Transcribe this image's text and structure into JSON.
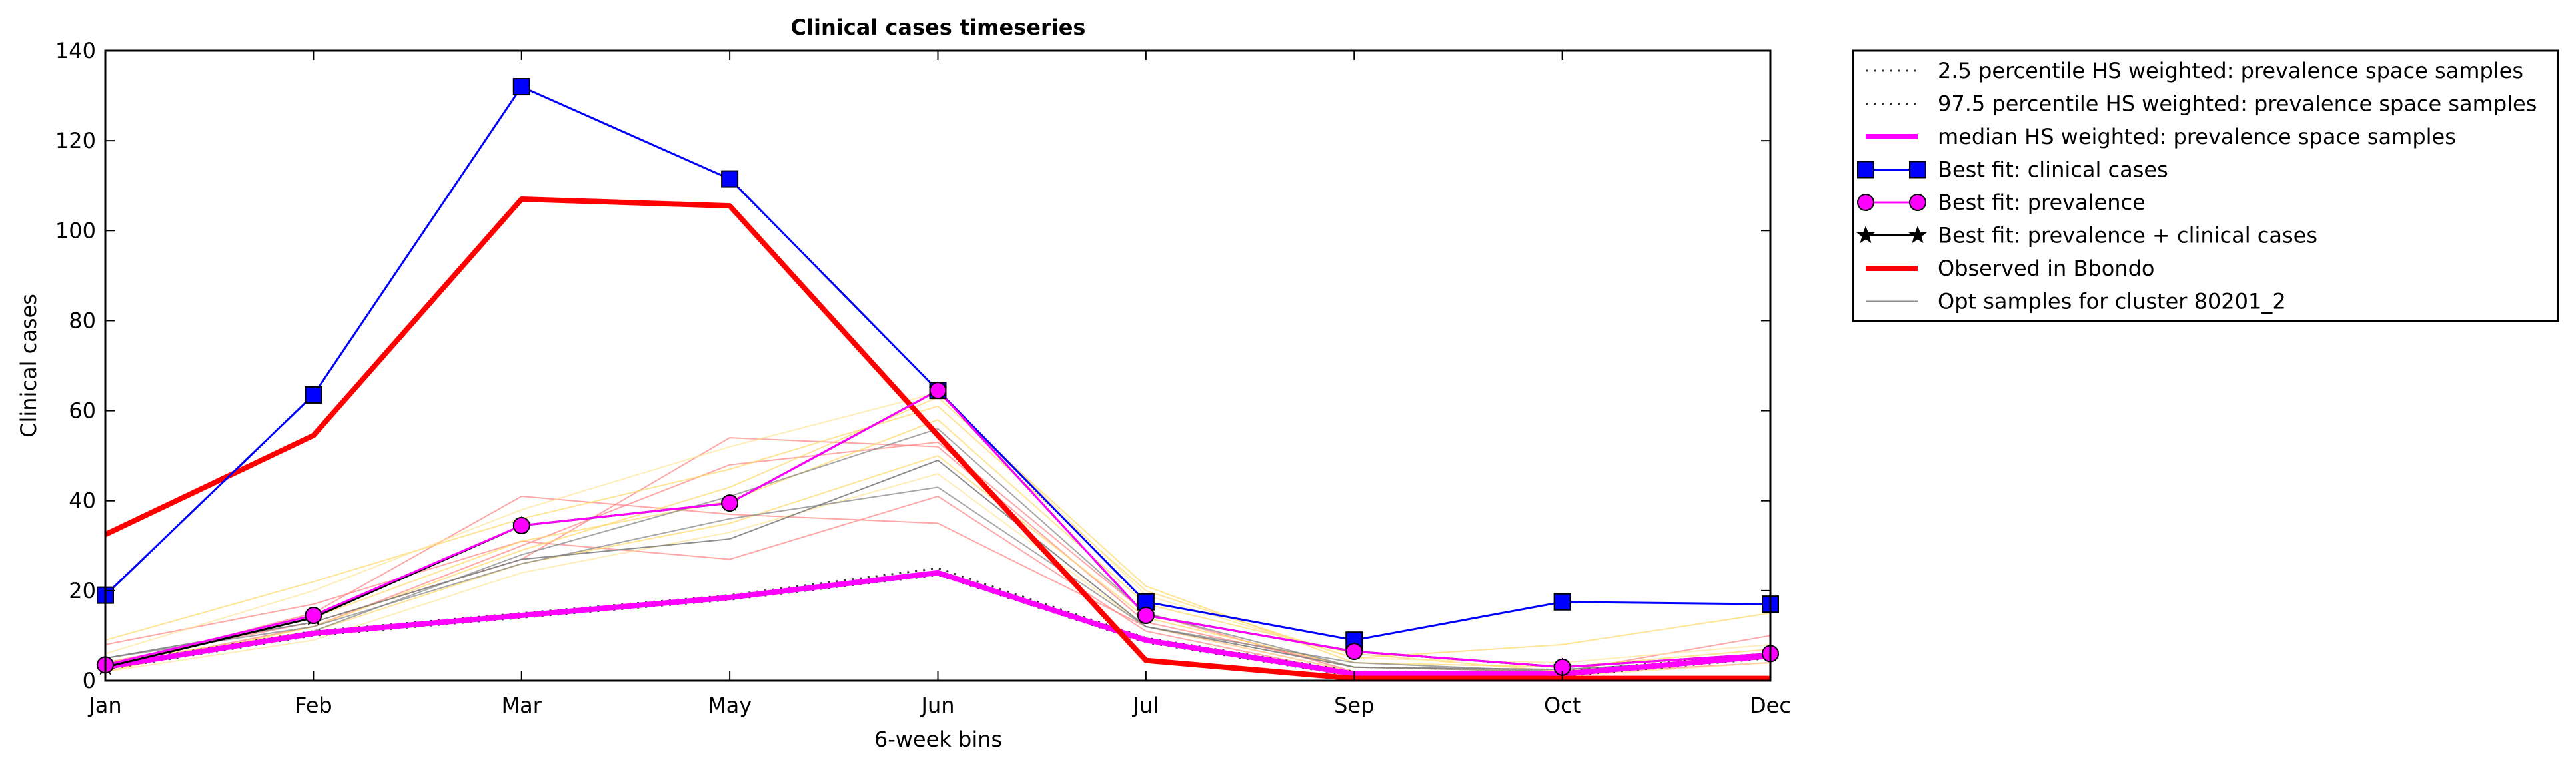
{
  "chart_data": {
    "type": "line",
    "title": "Clinical cases timeseries",
    "xlabel": "6-week bins",
    "ylabel": "Clinical cases",
    "ylim": [
      0,
      140
    ],
    "yticks": [
      0,
      20,
      40,
      60,
      80,
      100,
      120,
      140
    ],
    "categories": [
      "Jan",
      "Feb",
      "Mar",
      "May",
      "Jun",
      "Jul",
      "Sep",
      "Oct",
      "Dec"
    ],
    "grid": false,
    "legend_position": "outside-right",
    "series": [
      {
        "name": "2.5 percentile HS weighted: prevalence space samples",
        "color": "#000000",
        "style": "dotted",
        "values": [
          2.5,
          10,
          14,
          18,
          23.5,
          8.5,
          1,
          1,
          5
        ]
      },
      {
        "name": "97.5 percentile HS weighted: prevalence space samples",
        "color": "#000000",
        "style": "dotted",
        "values": [
          3.5,
          11,
          15,
          19,
          25,
          9.5,
          2,
          2,
          6
        ]
      },
      {
        "name": "median HS weighted: prevalence space samples",
        "color": "#ff00ff",
        "style": "solid-thick",
        "values": [
          3,
          10.5,
          14.5,
          18.5,
          24,
          9,
          1.5,
          1.5,
          5.5
        ]
      },
      {
        "name": "Best fit: clinical cases",
        "color": "#0000ff",
        "style": "line-square",
        "values": [
          19,
          63.5,
          132,
          111.5,
          64.5,
          17.5,
          9,
          17.5,
          17
        ]
      },
      {
        "name": "Best fit: prevalence",
        "color": "#ff00ff",
        "style": "line-circle",
        "values": [
          3.5,
          14.5,
          34.5,
          39.5,
          64.5,
          14.5,
          6.5,
          3,
          6
        ]
      },
      {
        "name": "Best fit: prevalence + clinical cases",
        "color": "#000000",
        "style": "line-star",
        "values": [
          3,
          14,
          34.5,
          39.5,
          64.5,
          14.5,
          6.5,
          3,
          6
        ]
      },
      {
        "name": "Observed in Bbondo",
        "color": "#ff0000",
        "style": "solid-thick",
        "values": [
          32.5,
          54.5,
          107,
          105.5,
          54.5,
          4.5,
          0.5,
          0.5,
          0.5
        ]
      },
      {
        "name": "Opt samples for cluster 80201_2",
        "color": "#808080",
        "style": "thin",
        "values": [
          5,
          13,
          27,
          31.5,
          49,
          12,
          3,
          2.5,
          5
        ]
      }
    ],
    "background_samples": [
      {
        "color": "#ff8080",
        "values": [
          3,
          15,
          41,
          37,
          35,
          12,
          2,
          1.5,
          4
        ]
      },
      {
        "color": "#ff8080",
        "values": [
          4,
          13,
          27,
          54,
          52,
          13,
          3,
          2,
          10
        ]
      },
      {
        "color": "#ff8080",
        "values": [
          8,
          17,
          31,
          27,
          41,
          11,
          1.5,
          2,
          5
        ]
      },
      {
        "color": "#ff8080",
        "values": [
          3,
          12,
          30,
          48,
          53,
          15,
          2,
          1,
          6
        ]
      },
      {
        "color": "#ffd966",
        "values": [
          9,
          22,
          36,
          47,
          61,
          20,
          5,
          8,
          15
        ]
      },
      {
        "color": "#ffd966",
        "values": [
          2,
          12,
          29,
          43,
          63,
          21,
          4,
          3,
          7
        ]
      },
      {
        "color": "#ffd966",
        "values": [
          3,
          14,
          31,
          40,
          58,
          17,
          6,
          2,
          6
        ]
      },
      {
        "color": "#ffd966",
        "values": [
          4,
          11,
          26,
          35,
          50,
          14,
          3,
          2,
          5
        ]
      },
      {
        "color": "#ffe699",
        "values": [
          6,
          20,
          38,
          52,
          64,
          19,
          5,
          4,
          8
        ]
      },
      {
        "color": "#ffe699",
        "values": [
          2,
          9,
          24,
          33,
          46,
          12,
          2,
          1,
          4
        ]
      },
      {
        "color": "#808080",
        "values": [
          5,
          12,
          26,
          36,
          43,
          12,
          4,
          2,
          5
        ]
      },
      {
        "color": "#808080",
        "values": [
          3,
          11,
          28,
          41,
          56,
          15,
          3,
          2,
          5
        ]
      }
    ]
  }
}
